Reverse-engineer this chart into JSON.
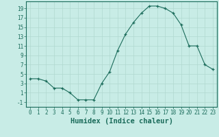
{
  "x": [
    0,
    1,
    2,
    3,
    4,
    5,
    6,
    7,
    8,
    9,
    10,
    11,
    12,
    13,
    14,
    15,
    16,
    17,
    18,
    19,
    20,
    21,
    22,
    23
  ],
  "y": [
    4,
    4,
    3.5,
    2,
    2,
    1,
    -0.5,
    -0.5,
    -0.5,
    3,
    5.5,
    10,
    13.5,
    16,
    18,
    19.5,
    19.5,
    19,
    18,
    15.5,
    11,
    11,
    7,
    6
  ],
  "xlim": [
    -0.5,
    23.5
  ],
  "ylim": [
    -2,
    20.5
  ],
  "xticks": [
    0,
    1,
    2,
    3,
    4,
    5,
    6,
    7,
    8,
    9,
    10,
    11,
    12,
    13,
    14,
    15,
    16,
    17,
    18,
    19,
    20,
    21,
    22,
    23
  ],
  "yticks": [
    -1,
    1,
    3,
    5,
    7,
    9,
    11,
    13,
    15,
    17,
    19
  ],
  "xlabel": "Humidex (Indice chaleur)",
  "line_color": "#1a6b5a",
  "marker": "+",
  "bg_color": "#c8ece6",
  "grid_color": "#b0d8d0",
  "tick_label_fontsize": 5.5,
  "xlabel_fontsize": 7.5
}
